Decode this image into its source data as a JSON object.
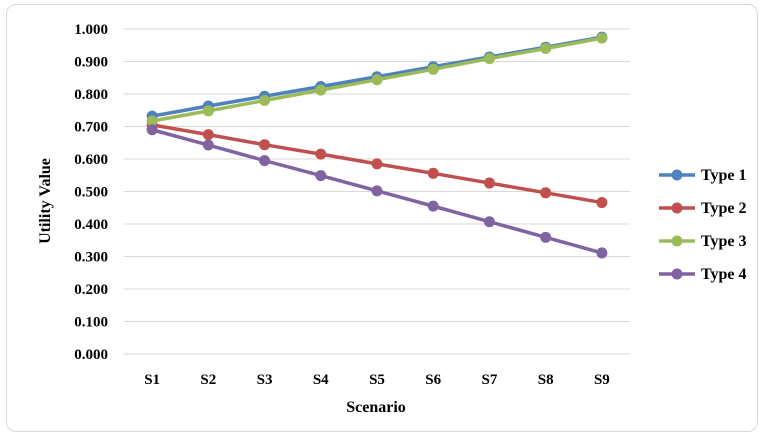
{
  "chart_data": {
    "type": "line",
    "xlabel": "Scenario",
    "ylabel": "Utility Value",
    "categories": [
      "S1",
      "S2",
      "S3",
      "S4",
      "S5",
      "S6",
      "S7",
      "S8",
      "S9"
    ],
    "ylim": [
      0,
      1
    ],
    "ytick_step": 0.1,
    "ytick_decimals": 3,
    "grid": true,
    "legend_position": "right",
    "series": [
      {
        "name": "Type 1",
        "color": "#4f81bd",
        "values": [
          0.732,
          0.763,
          0.793,
          0.823,
          0.853,
          0.884,
          0.914,
          0.944,
          0.975
        ]
      },
      {
        "name": "Type 2",
        "color": "#c0504d",
        "values": [
          0.705,
          0.675,
          0.644,
          0.615,
          0.585,
          0.556,
          0.526,
          0.496,
          0.466
        ]
      },
      {
        "name": "Type 3",
        "color": "#9bbb59",
        "values": [
          0.717,
          0.748,
          0.78,
          0.812,
          0.844,
          0.876,
          0.909,
          0.94,
          0.972
        ]
      },
      {
        "name": "Type 4",
        "color": "#8064a2",
        "values": [
          0.69,
          0.643,
          0.595,
          0.549,
          0.502,
          0.455,
          0.407,
          0.359,
          0.311
        ]
      }
    ]
  }
}
